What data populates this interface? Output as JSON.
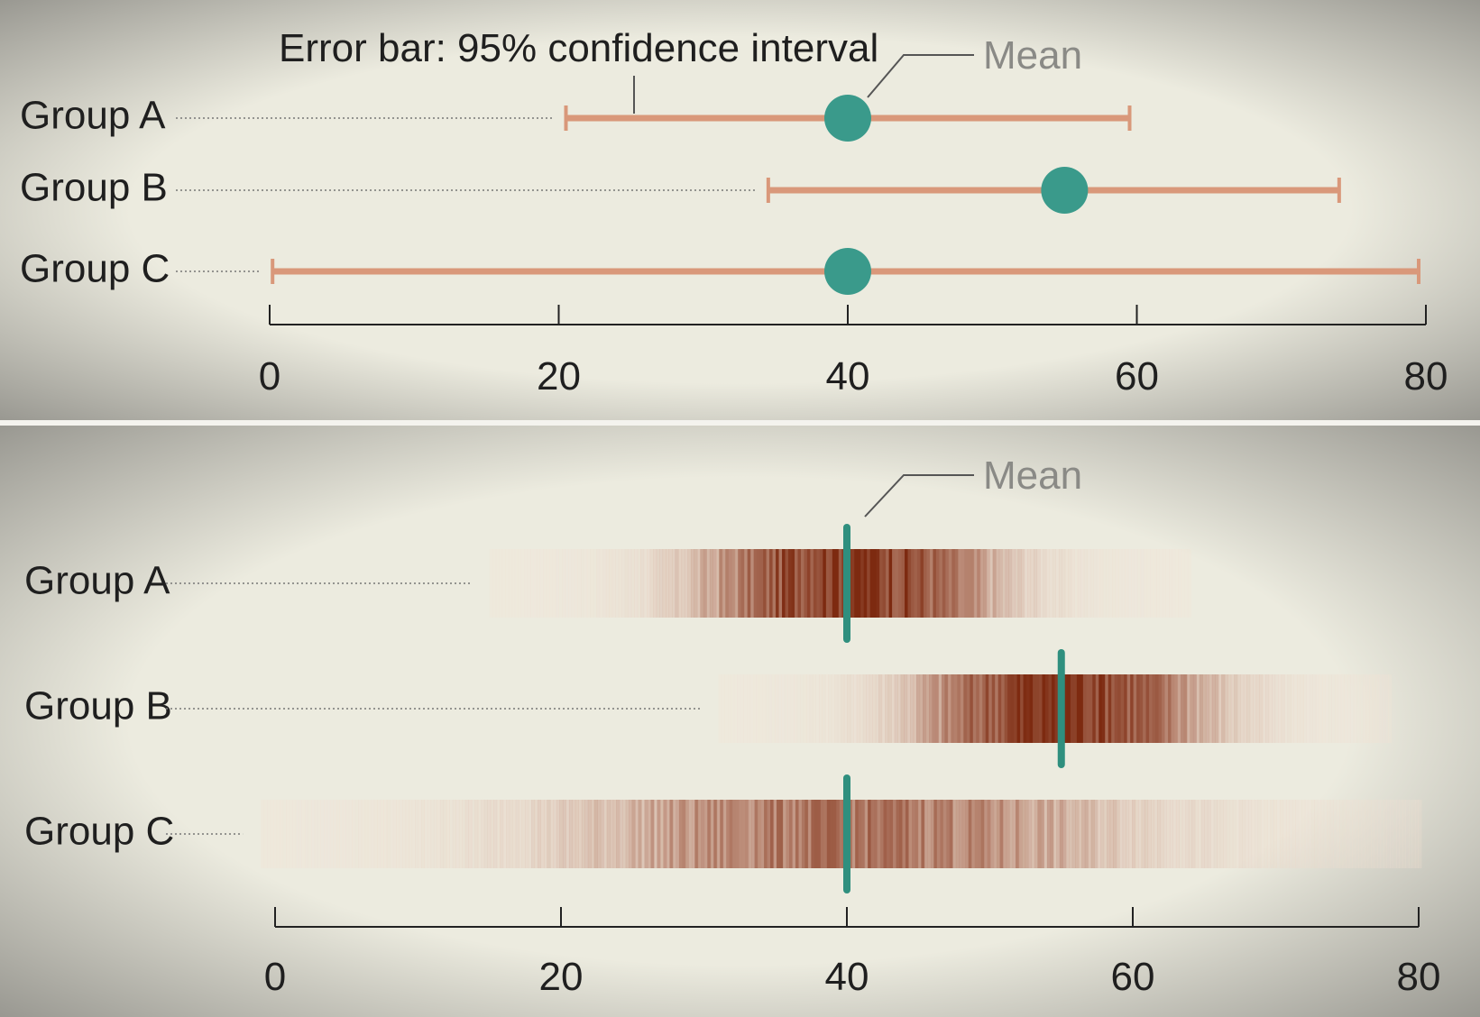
{
  "colors": {
    "background": "#ecebdf",
    "vignette": "#8d8c86",
    "error_bar": "#d9987a",
    "mean_marker": "#3a9a8b",
    "mean_line": "#2f8f7e",
    "axis": "#222222",
    "label_text": "#1f1f1f",
    "annotation_text": "#8a8a86",
    "leader": "#555555",
    "gradient_light": "#f3e3d5",
    "gradient_dark": "#7d2a10"
  },
  "chart_data": [
    {
      "type": "errorbar",
      "title": "",
      "annotations": {
        "error_bar_label": "Error bar: 95% confidence interval",
        "mean_label": "Mean"
      },
      "categories": [
        "Group A",
        "Group B",
        "Group C"
      ],
      "series": [
        {
          "mean": [
            40,
            55,
            40
          ],
          "ci_low": [
            20.5,
            34.5,
            0.2
          ],
          "ci_high": [
            59.5,
            74,
            79.5
          ]
        }
      ],
      "xlim": [
        0,
        80
      ],
      "xticks": [
        0,
        20,
        40,
        60,
        80
      ],
      "xlabel": "",
      "ylabel": "",
      "grid": false,
      "legend": "none"
    },
    {
      "type": "gradient-band",
      "title": "",
      "annotations": {
        "mean_label": "Mean"
      },
      "categories": [
        "Group A",
        "Group B",
        "Group C"
      ],
      "series": [
        {
          "mean": [
            40,
            55,
            40
          ],
          "sd": [
            7,
            7,
            14
          ],
          "extent_low": [
            15,
            31,
            -1
          ],
          "extent_high": [
            64,
            78,
            80
          ]
        }
      ],
      "xlim": [
        0,
        80
      ],
      "xticks": [
        0,
        20,
        40,
        60,
        80
      ],
      "xlabel": "",
      "ylabel": "",
      "grid": false,
      "legend": "none"
    }
  ]
}
